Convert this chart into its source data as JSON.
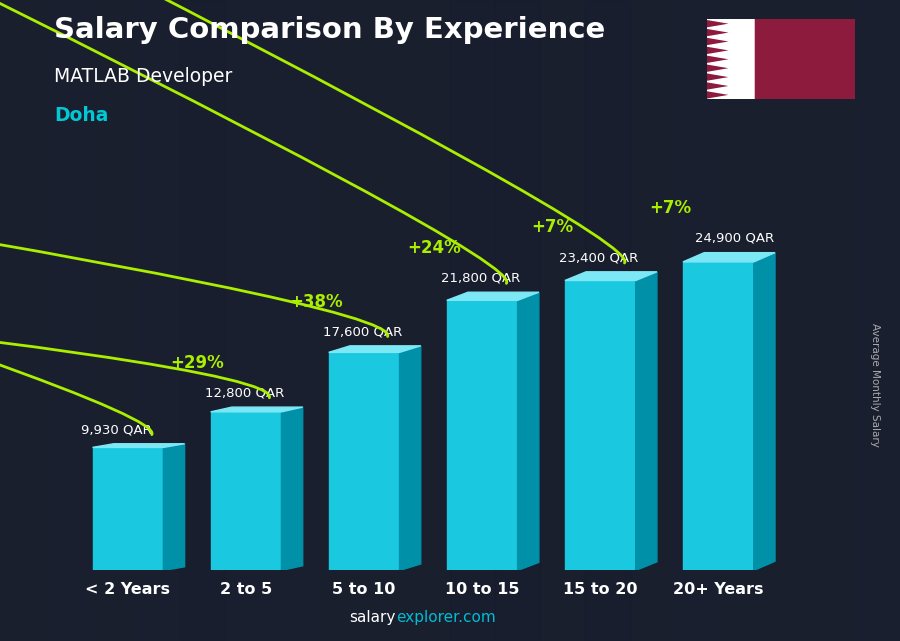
{
  "title": "Salary Comparison By Experience",
  "subtitle": "MATLAB Developer",
  "city": "Doha",
  "categories": [
    "< 2 Years",
    "2 to 5",
    "5 to 10",
    "10 to 15",
    "15 to 20",
    "20+ Years"
  ],
  "values": [
    9930,
    12800,
    17600,
    21800,
    23400,
    24900
  ],
  "labels": [
    "9,930 QAR",
    "12,800 QAR",
    "17,600 QAR",
    "21,800 QAR",
    "23,400 QAR",
    "24,900 QAR"
  ],
  "pct_changes": [
    "+29%",
    "+38%",
    "+24%",
    "+7%",
    "+7%"
  ],
  "bar_color_face": "#1ac8e0",
  "bar_color_top": "#7de8f5",
  "bar_color_side": "#0090a8",
  "bg_color": "#1a1f2e",
  "title_color": "#ffffff",
  "subtitle_color": "#ffffff",
  "city_color": "#00c8d4",
  "label_color": "#ffffff",
  "pct_color": "#aaee00",
  "xlabel_color": "#ffffff",
  "footer_salary_color": "#ffffff",
  "footer_explorer_color": "#00bcd4",
  "ylabel_text": "Average Monthly Salary",
  "footer_salary": "salary",
  "footer_explorer": "explorer.com",
  "ymax": 30000
}
